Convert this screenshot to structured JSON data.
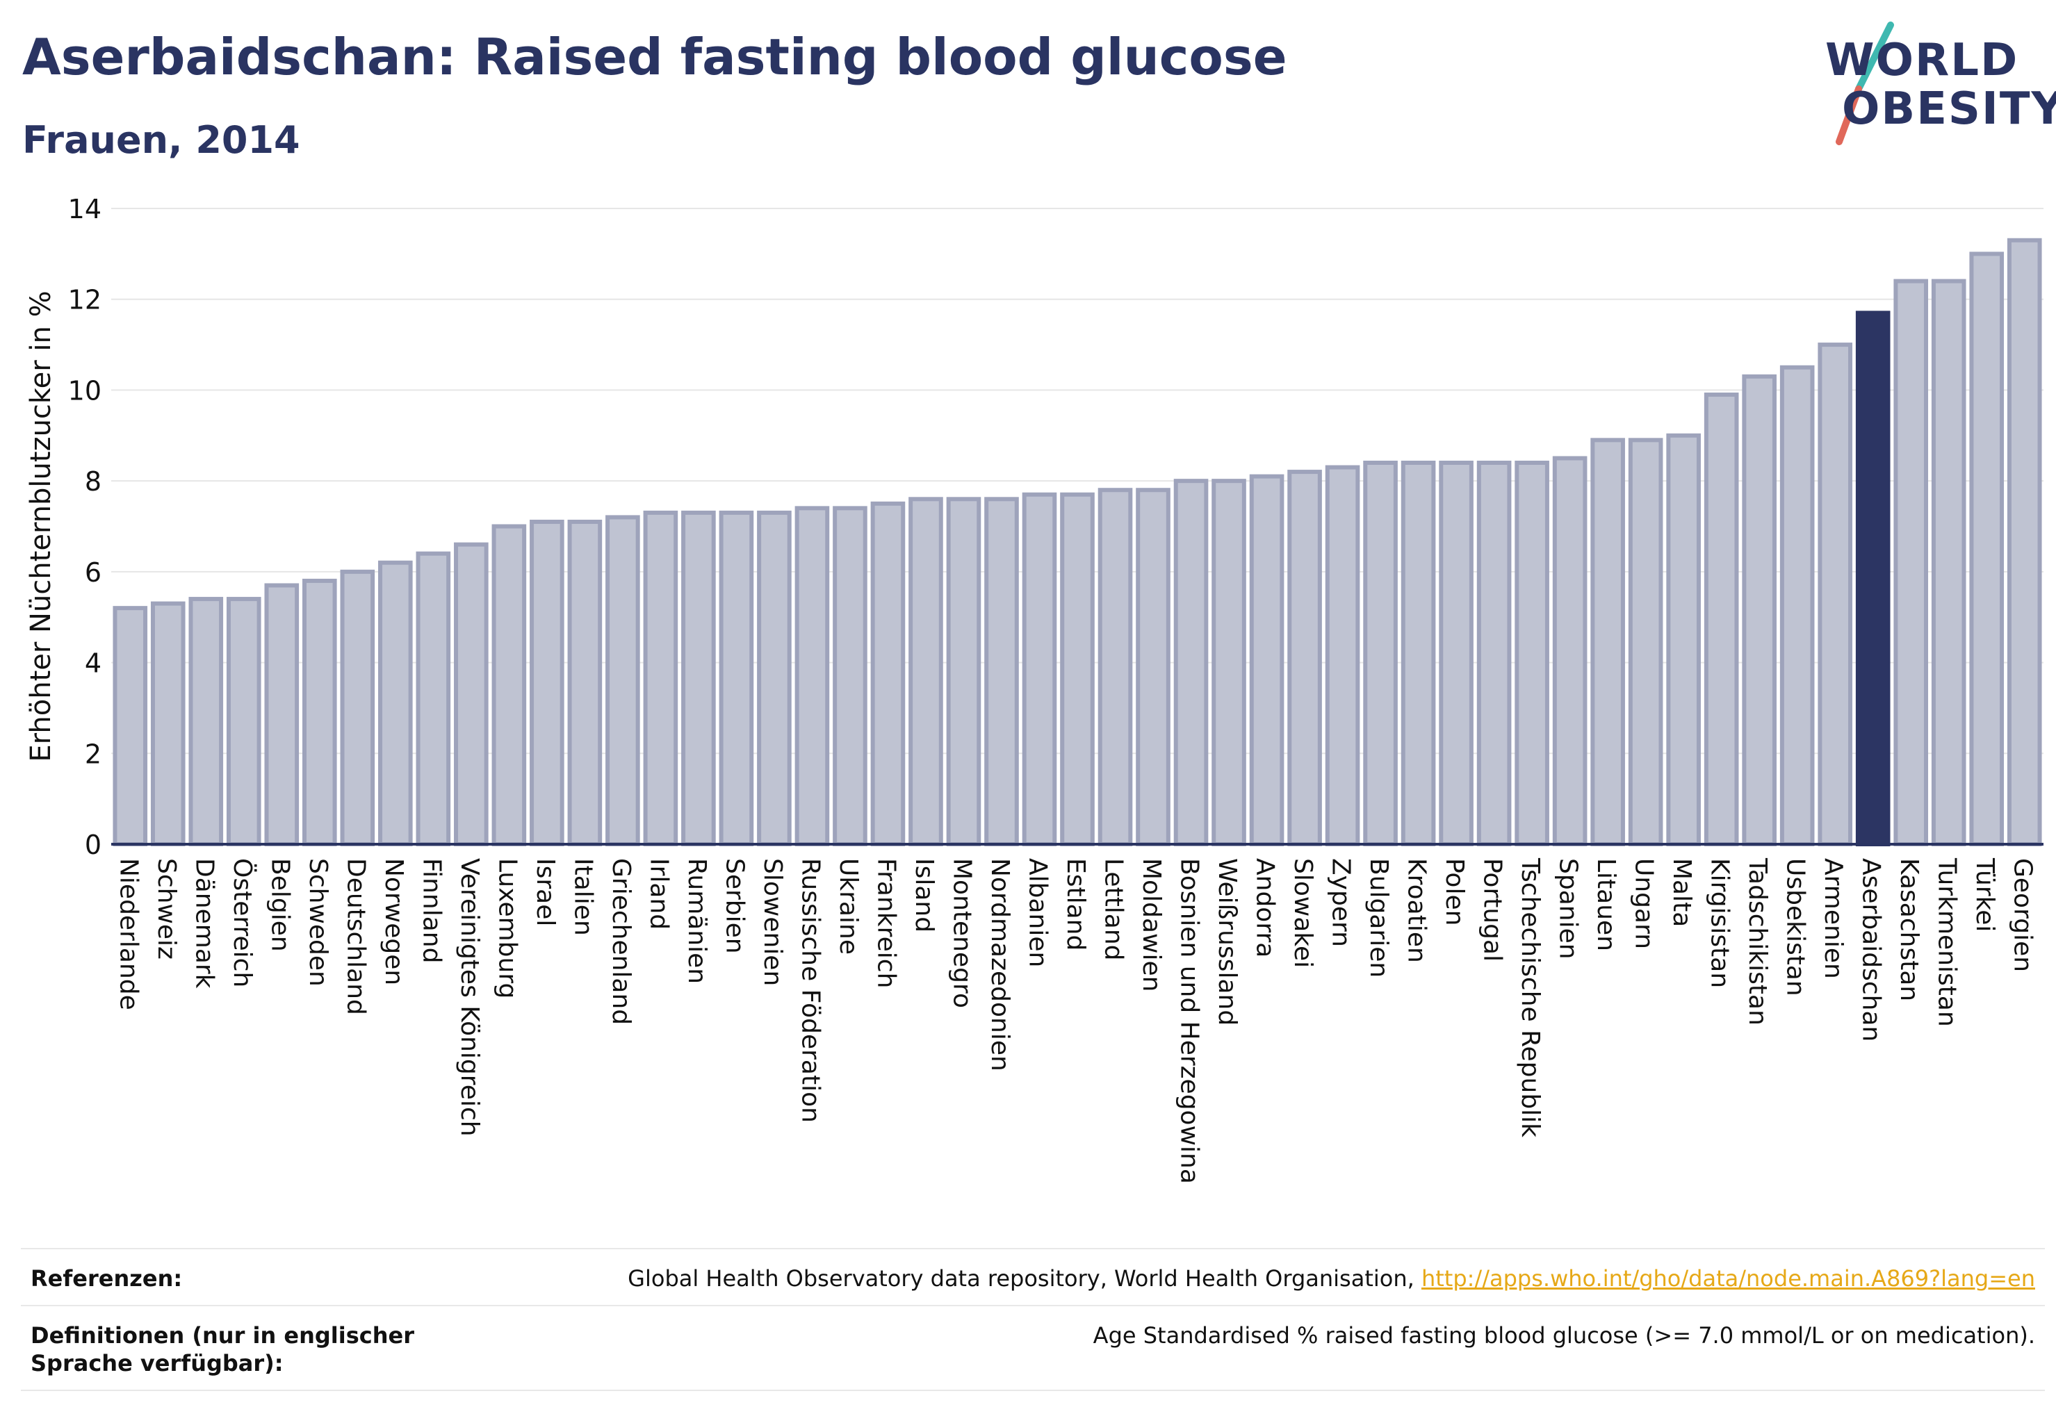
{
  "header": {
    "title": "Aserbaidschan: Raised fasting blood glucose",
    "subtitle": "Frauen, 2014"
  },
  "logo": {
    "line1": "WORLD",
    "line2": "OBESITY"
  },
  "colors": {
    "bar": "#bfc3d2",
    "bar_border": "#9ea3bb",
    "highlight": "#2c3563",
    "text_dark": "#2a3462",
    "link": "#e6a817",
    "grid": "#e6e6e6"
  },
  "chart_data": {
    "type": "bar",
    "ylabel": "Erhöhter Nüchternblutzucker in %",
    "ylim": [
      0,
      14
    ],
    "yticks": [
      0,
      2,
      4,
      6,
      8,
      10,
      12,
      14
    ],
    "highlight": "Aserbaidschan",
    "categories": [
      "Niederlande",
      "Schweiz",
      "Dänemark",
      "Österreich",
      "Belgien",
      "Schweden",
      "Deutschland",
      "Norwegen",
      "Finnland",
      "Vereinigtes Königreich",
      "Luxemburg",
      "Israel",
      "Italien",
      "Griechenland",
      "Irland",
      "Rumänien",
      "Serbien",
      "Slowenien",
      "Russische Föderation",
      "Ukraine",
      "Frankreich",
      "Island",
      "Montenegro",
      "Nordmazedonien",
      "Albanien",
      "Estland",
      "Lettland",
      "Moldawien",
      "Bosnien und Herzegowina",
      "Weißrussland",
      "Andorra",
      "Slowakei",
      "Zypern",
      "Bulgarien",
      "Kroatien",
      "Polen",
      "Portugal",
      "Tschechische Republik",
      "Spanien",
      "Litauen",
      "Ungarn",
      "Malta",
      "Kirgisistan",
      "Tadschikistan",
      "Usbekistan",
      "Armenien",
      "Aserbaidschan",
      "Kasachstan",
      "Turkmenistan",
      "Türkei",
      "Georgien"
    ],
    "values": [
      5.2,
      5.3,
      5.4,
      5.4,
      5.7,
      5.8,
      6.0,
      6.2,
      6.4,
      6.6,
      7.0,
      7.1,
      7.1,
      7.2,
      7.3,
      7.3,
      7.3,
      7.3,
      7.4,
      7.4,
      7.5,
      7.6,
      7.6,
      7.6,
      7.7,
      7.7,
      7.8,
      7.8,
      8.0,
      8.0,
      8.1,
      8.2,
      8.3,
      8.4,
      8.4,
      8.4,
      8.4,
      8.4,
      8.5,
      8.9,
      8.9,
      9.0,
      9.9,
      10.3,
      10.5,
      11.0,
      11.7,
      12.4,
      12.4,
      13.0,
      13.3
    ]
  },
  "footer": {
    "references_label": "Referenzen:",
    "references_text": "Global Health Observatory data repository, World Health Organisation, ",
    "references_link": "http://apps.who.int/gho/data/node.main.A869?lang=en",
    "definitions_label": "Definitionen (nur in englischer Sprache verfügbar):",
    "definitions_text": "Age Standardised % raised fasting blood glucose (>= 7.0 mmol/L or on medication)."
  }
}
